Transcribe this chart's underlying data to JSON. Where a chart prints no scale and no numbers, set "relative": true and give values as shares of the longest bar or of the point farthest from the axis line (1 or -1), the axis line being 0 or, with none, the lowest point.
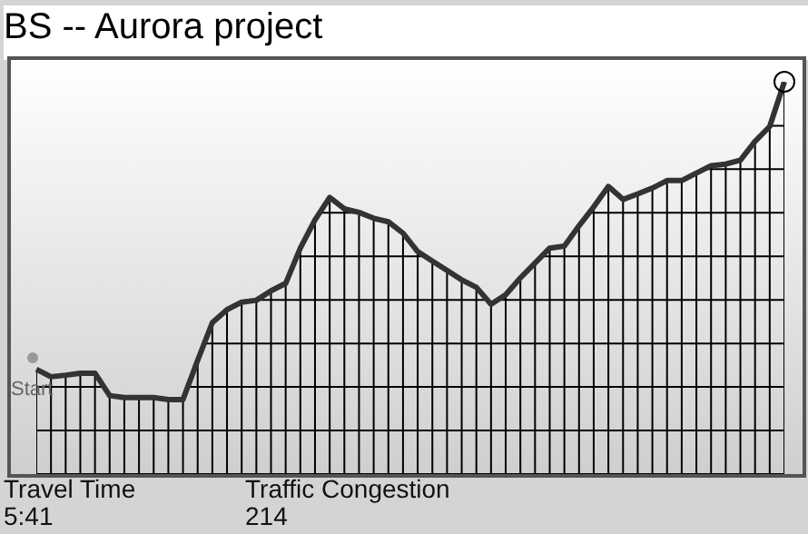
{
  "chart_data": {
    "type": "line",
    "title": "BS -- Aurora project",
    "relative": true,
    "color": "#333333",
    "grid": true,
    "categories": [
      null,
      null,
      null,
      null,
      null,
      null,
      null,
      null,
      null,
      null,
      null,
      null,
      null,
      null,
      null,
      null,
      null,
      null,
      null,
      null,
      null,
      null,
      null,
      null,
      null,
      null,
      null,
      null,
      null,
      null,
      null,
      null,
      null,
      null,
      null,
      null,
      null,
      null,
      null,
      null,
      null,
      null,
      null,
      null,
      null,
      null,
      null,
      null,
      null,
      null,
      null,
      null
    ],
    "values": [
      0.267,
      0.248,
      0.252,
      0.257,
      0.257,
      0.2,
      0.195,
      0.195,
      0.195,
      0.19,
      0.19,
      0.29,
      0.386,
      0.419,
      0.438,
      0.443,
      0.467,
      0.486,
      0.576,
      0.648,
      0.705,
      0.676,
      0.667,
      0.652,
      0.643,
      0.614,
      0.567,
      0.543,
      0.519,
      0.495,
      0.476,
      0.433,
      0.457,
      0.5,
      0.538,
      0.576,
      0.581,
      0.633,
      0.681,
      0.733,
      0.7,
      0.714,
      0.729,
      0.748,
      0.748,
      0.767,
      0.786,
      0.79,
      0.8,
      0.848,
      0.886,
      1
    ],
    "annotations": [
      "Start",
      "Travel Time",
      "5:41",
      "Traffic Congestion",
      "214"
    ]
  }
}
